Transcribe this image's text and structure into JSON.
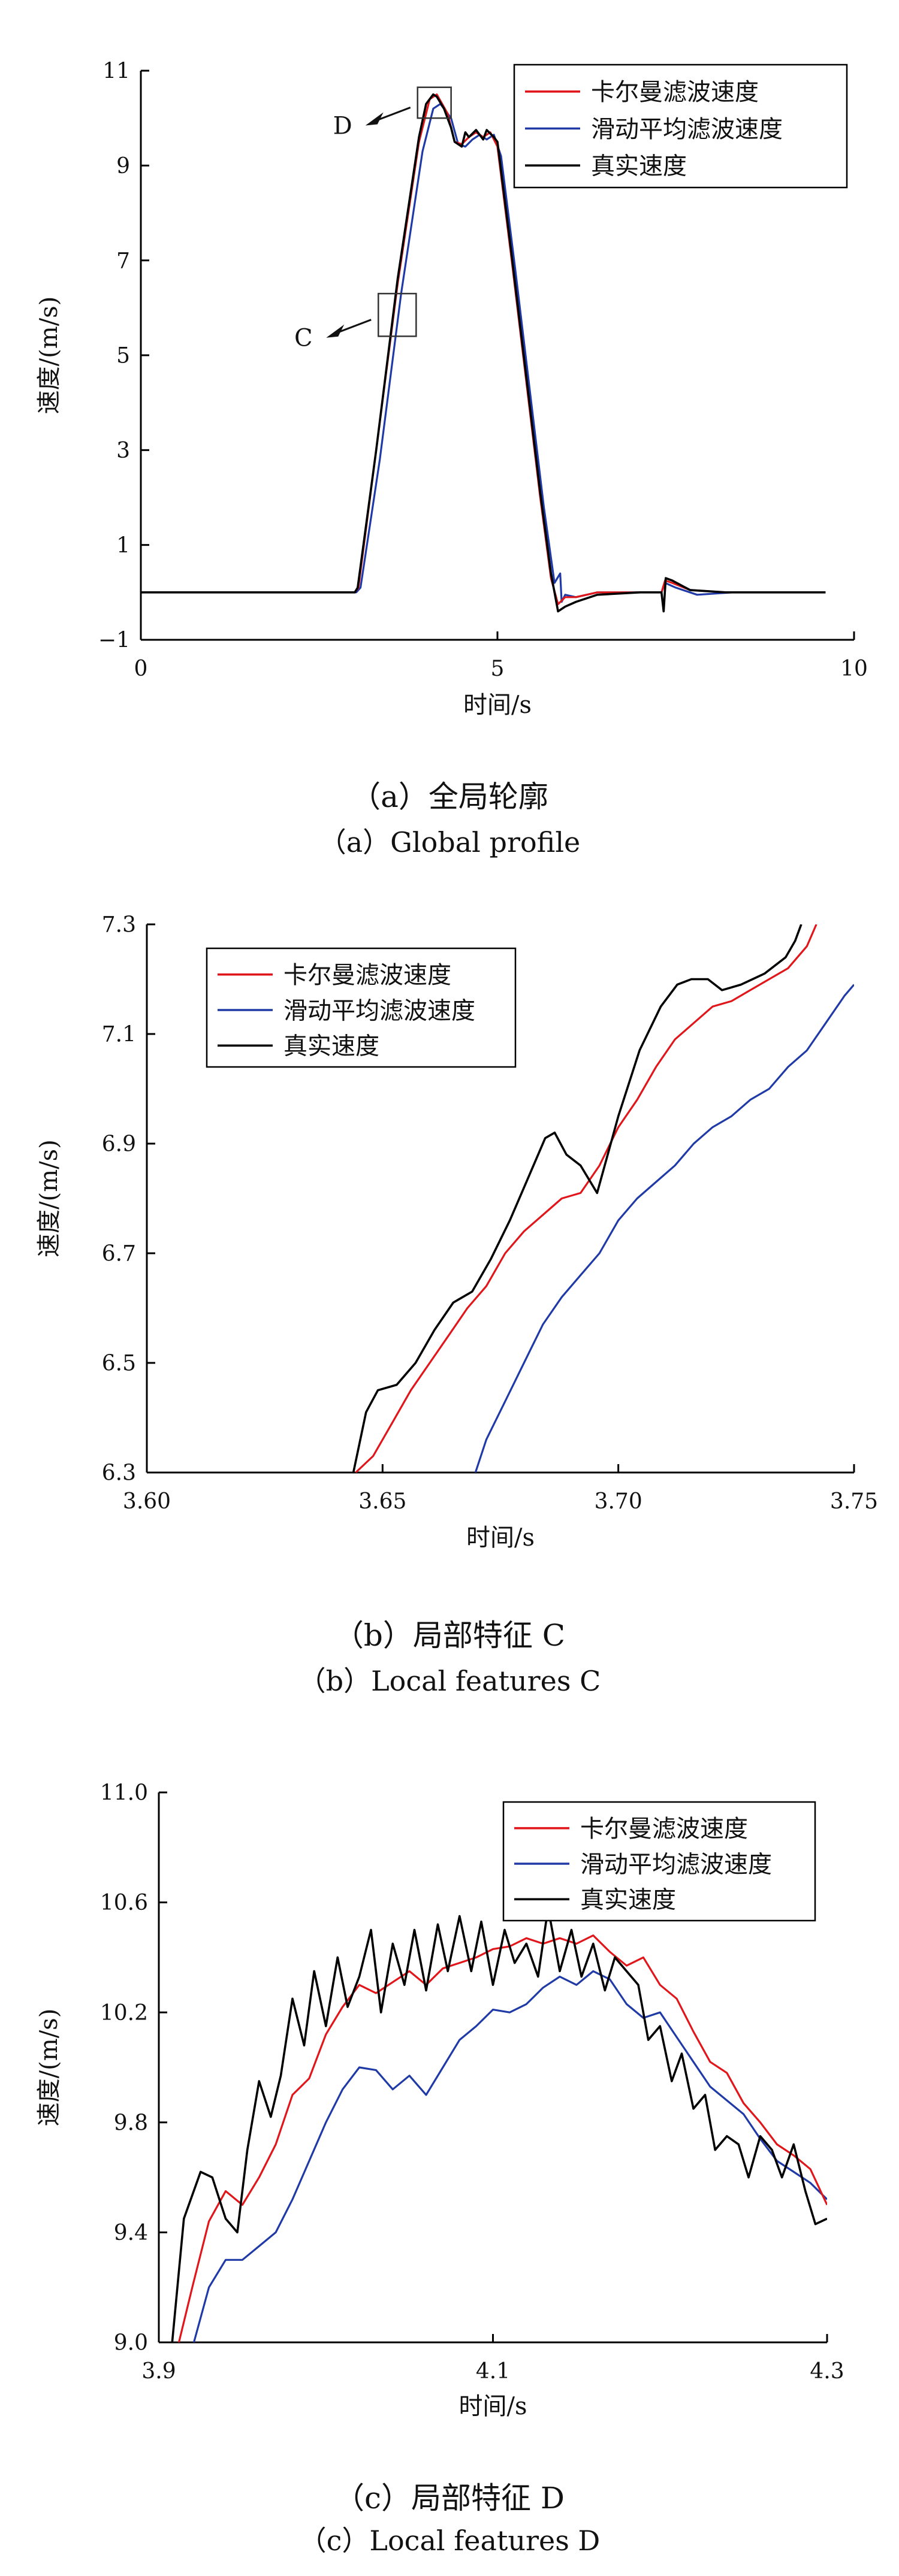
{
  "colors": {
    "kalman": "#e0161b",
    "moving_avg": "#1f3aa6",
    "true_speed": "#000000"
  },
  "panels": [
    {
      "caption_cn": "（a）全局轮廓",
      "caption_en": "（a）Global profile"
    },
    {
      "caption_cn": "（b）局部特征 C",
      "caption_en": "（b）Local features C"
    },
    {
      "caption_cn": "（c）局部特征 D",
      "caption_en": "（c）Local features D"
    }
  ],
  "chart_data": [
    {
      "type": "line",
      "xlabel": "时间/s",
      "ylabel": "速度/(m/s)",
      "xlim": [
        0,
        10
      ],
      "ylim": [
        -1,
        11
      ],
      "xticks": [
        0,
        5,
        10
      ],
      "xtick_labels": [
        "0",
        "5",
        "10"
      ],
      "yticks": [
        -1,
        1,
        3,
        5,
        7,
        9,
        11
      ],
      "ytick_labels": [
        "−1",
        "1",
        "3",
        "5",
        "7",
        "9",
        "11"
      ],
      "grid": false,
      "legend_position": "top-right",
      "annotations": [
        {
          "label": "D",
          "x_range": [
            3.88,
            4.35
          ],
          "y_range": [
            10.0,
            10.65
          ]
        },
        {
          "label": "C",
          "x_range": [
            3.33,
            3.86
          ],
          "y_range": [
            5.4,
            6.3
          ]
        }
      ],
      "series": [
        {
          "name": "卡尔曼滤波速度",
          "x": [
            0,
            3.0,
            3.05,
            3.3,
            3.6,
            3.9,
            4.05,
            4.15,
            4.3,
            4.4,
            4.5,
            4.6,
            4.7,
            4.8,
            4.9,
            5.0,
            5.2,
            5.4,
            5.6,
            5.75,
            5.85,
            5.95,
            6.1,
            6.4,
            7.0,
            7.3,
            7.35,
            7.45,
            7.7,
            8.2,
            9.6
          ],
          "y": [
            0,
            0,
            0.1,
            3.0,
            6.5,
            9.5,
            10.4,
            10.5,
            10.1,
            9.5,
            9.45,
            9.6,
            9.7,
            9.6,
            9.7,
            9.4,
            7.0,
            4.5,
            2.0,
            0.3,
            -0.25,
            -0.1,
            -0.1,
            0.0,
            0.0,
            0.0,
            0.25,
            0.2,
            0.05,
            0.0,
            0.0
          ]
        },
        {
          "name": "滑动平均滤波速度",
          "x": [
            0,
            3.02,
            3.08,
            3.35,
            3.65,
            3.95,
            4.1,
            4.2,
            4.35,
            4.45,
            4.55,
            4.65,
            4.75,
            4.85,
            4.95,
            5.05,
            5.25,
            5.45,
            5.65,
            5.8,
            5.88,
            5.9,
            5.95,
            6.1,
            6.4,
            7.0,
            7.3,
            7.35,
            7.5,
            7.8,
            8.3,
            9.6
          ],
          "y": [
            0,
            0,
            0.1,
            2.8,
            6.3,
            9.3,
            10.2,
            10.3,
            10.0,
            9.45,
            9.4,
            9.55,
            9.65,
            9.55,
            9.65,
            9.2,
            6.8,
            4.3,
            1.8,
            0.2,
            0.4,
            -0.2,
            -0.05,
            -0.1,
            0.0,
            0.0,
            0.0,
            0.2,
            0.1,
            -0.05,
            0.0,
            0.0
          ]
        },
        {
          "name": "真实速度",
          "x": [
            0,
            3.0,
            3.04,
            3.3,
            3.6,
            3.9,
            4.0,
            4.1,
            4.15,
            4.25,
            4.35,
            4.4,
            4.5,
            4.55,
            4.6,
            4.7,
            4.8,
            4.85,
            4.95,
            5.0,
            5.2,
            5.4,
            5.6,
            5.75,
            5.85,
            5.95,
            6.1,
            6.4,
            7.0,
            7.3,
            7.33,
            7.36,
            7.45,
            7.7,
            8.2,
            9.6
          ],
          "y": [
            0,
            0,
            0.1,
            3.0,
            6.6,
            9.6,
            10.3,
            10.5,
            10.45,
            10.2,
            9.8,
            9.5,
            9.4,
            9.7,
            9.6,
            9.75,
            9.55,
            9.75,
            9.6,
            9.5,
            7.1,
            4.6,
            2.1,
            0.4,
            -0.4,
            -0.3,
            -0.2,
            -0.05,
            0.0,
            0.0,
            -0.4,
            0.3,
            0.25,
            0.05,
            0.0,
            0.0
          ]
        }
      ]
    },
    {
      "type": "line",
      "xlabel": "时间/s",
      "ylabel": "速度/(m/s)",
      "xlim": [
        3.6,
        3.75
      ],
      "ylim": [
        6.3,
        7.3
      ],
      "xticks": [
        3.6,
        3.65,
        3.7,
        3.75
      ],
      "xtick_labels": [
        "3.60",
        "3.65",
        "3.70",
        "3.75"
      ],
      "yticks": [
        6.3,
        6.5,
        6.7,
        6.9,
        7.1,
        7.3
      ],
      "ytick_labels": [
        "6.3",
        "6.5",
        "6.7",
        "6.9",
        "7.1",
        "7.3"
      ],
      "grid": false,
      "legend_position": "top-left",
      "series": [
        {
          "name": "卡尔曼滤波速度",
          "x": [
            3.6443,
            3.648,
            3.652,
            3.656,
            3.66,
            3.664,
            3.668,
            3.672,
            3.676,
            3.68,
            3.684,
            3.688,
            3.692,
            3.696,
            3.7,
            3.704,
            3.708,
            3.712,
            3.716,
            3.72,
            3.724,
            3.728,
            3.732,
            3.736,
            3.74,
            3.742
          ],
          "y": [
            6.3,
            6.33,
            6.39,
            6.45,
            6.5,
            6.55,
            6.6,
            6.64,
            6.7,
            6.74,
            6.77,
            6.8,
            6.81,
            6.86,
            6.93,
            6.98,
            7.04,
            7.09,
            7.12,
            7.15,
            7.16,
            7.18,
            7.2,
            7.22,
            7.26,
            7.3
          ]
        },
        {
          "name": "滑动平均滤波速度",
          "x": [
            3.6697,
            3.672,
            3.676,
            3.68,
            3.684,
            3.688,
            3.692,
            3.696,
            3.7,
            3.704,
            3.708,
            3.712,
            3.716,
            3.72,
            3.724,
            3.728,
            3.732,
            3.736,
            3.74,
            3.744,
            3.748,
            3.75
          ],
          "y": [
            6.3,
            6.36,
            6.43,
            6.5,
            6.57,
            6.62,
            6.66,
            6.7,
            6.76,
            6.8,
            6.83,
            6.86,
            6.9,
            6.93,
            6.95,
            6.98,
            7.0,
            7.04,
            7.07,
            7.12,
            7.17,
            7.19
          ]
        },
        {
          "name": "真实速度",
          "x": [
            3.6438,
            3.6465,
            3.649,
            3.653,
            3.657,
            3.661,
            3.665,
            3.669,
            3.673,
            3.677,
            3.681,
            3.6845,
            3.6865,
            3.689,
            3.692,
            3.6955,
            3.7,
            3.7045,
            3.709,
            3.7125,
            3.7155,
            3.719,
            3.722,
            3.726,
            3.731,
            3.7355,
            3.7375,
            3.7388
          ],
          "y": [
            6.3,
            6.41,
            6.45,
            6.46,
            6.5,
            6.56,
            6.61,
            6.63,
            6.69,
            6.76,
            6.84,
            6.91,
            6.92,
            6.88,
            6.86,
            6.81,
            6.95,
            7.07,
            7.15,
            7.19,
            7.2,
            7.2,
            7.18,
            7.19,
            7.21,
            7.24,
            7.27,
            7.3
          ]
        }
      ]
    },
    {
      "type": "line",
      "xlabel": "时间/s",
      "ylabel": "速度/(m/s)",
      "xlim": [
        3.9,
        4.3
      ],
      "ylim": [
        9.0,
        11.0
      ],
      "xticks": [
        3.9,
        4.1,
        4.3
      ],
      "xtick_labels": [
        "3.9",
        "4.1",
        "4.3"
      ],
      "yticks": [
        9.0,
        9.4,
        9.8,
        10.2,
        10.6,
        11.0
      ],
      "ytick_labels": [
        "9.0",
        "9.4",
        "9.8",
        "10.2",
        "10.6",
        "11.0"
      ],
      "grid": false,
      "legend_position": "top-right",
      "series": [
        {
          "name": "卡尔曼滤波速度",
          "x": [
            3.912,
            3.92,
            3.93,
            3.94,
            3.95,
            3.96,
            3.97,
            3.98,
            3.99,
            4.0,
            4.01,
            4.02,
            4.03,
            4.04,
            4.05,
            4.06,
            4.07,
            4.08,
            4.09,
            4.1,
            4.11,
            4.12,
            4.13,
            4.14,
            4.15,
            4.16,
            4.17,
            4.18,
            4.19,
            4.2,
            4.21,
            4.22,
            4.23,
            4.24,
            4.25,
            4.26,
            4.27,
            4.28,
            4.29,
            4.3
          ],
          "y": [
            9.0,
            9.2,
            9.44,
            9.55,
            9.5,
            9.6,
            9.72,
            9.9,
            9.96,
            10.12,
            10.22,
            10.3,
            10.27,
            10.31,
            10.35,
            10.3,
            10.36,
            10.38,
            10.4,
            10.43,
            10.44,
            10.47,
            10.45,
            10.47,
            10.45,
            10.48,
            10.42,
            10.37,
            10.4,
            10.3,
            10.25,
            10.13,
            10.02,
            9.98,
            9.87,
            9.8,
            9.72,
            9.68,
            9.63,
            9.5
          ]
        },
        {
          "name": "滑动平均滤波速度",
          "x": [
            3.921,
            3.93,
            3.94,
            3.95,
            3.96,
            3.97,
            3.98,
            3.99,
            4.0,
            4.01,
            4.02,
            4.03,
            4.04,
            4.05,
            4.06,
            4.07,
            4.08,
            4.09,
            4.1,
            4.11,
            4.12,
            4.13,
            4.14,
            4.15,
            4.16,
            4.17,
            4.18,
            4.19,
            4.2,
            4.21,
            4.22,
            4.23,
            4.24,
            4.25,
            4.26,
            4.27,
            4.28,
            4.29,
            4.3
          ],
          "y": [
            9.0,
            9.2,
            9.3,
            9.3,
            9.35,
            9.4,
            9.52,
            9.66,
            9.8,
            9.92,
            10.0,
            9.99,
            9.92,
            9.97,
            9.9,
            10.0,
            10.1,
            10.15,
            10.21,
            10.2,
            10.23,
            10.29,
            10.33,
            10.3,
            10.35,
            10.32,
            10.23,
            10.18,
            10.2,
            10.11,
            10.02,
            9.93,
            9.88,
            9.83,
            9.74,
            9.66,
            9.62,
            9.58,
            9.52
          ]
        },
        {
          "name": "真实速度",
          "x": [
            3.908,
            3.915,
            3.925,
            3.932,
            3.94,
            3.947,
            3.953,
            3.96,
            3.967,
            3.973,
            3.98,
            3.987,
            3.993,
            4.0,
            4.007,
            4.013,
            4.02,
            4.027,
            4.033,
            4.04,
            4.047,
            4.053,
            4.06,
            4.067,
            4.073,
            4.08,
            4.087,
            4.093,
            4.1,
            4.107,
            4.113,
            4.12,
            4.127,
            4.133,
            4.14,
            4.147,
            4.153,
            4.16,
            4.167,
            4.173,
            4.18,
            4.187,
            4.193,
            4.2,
            4.207,
            4.213,
            4.22,
            4.227,
            4.233,
            4.24,
            4.247,
            4.253,
            4.26,
            4.267,
            4.273,
            4.28,
            4.287,
            4.293,
            4.3
          ],
          "y": [
            9.0,
            9.45,
            9.62,
            9.6,
            9.45,
            9.4,
            9.7,
            9.95,
            9.82,
            9.97,
            10.25,
            10.08,
            10.35,
            10.15,
            10.4,
            10.22,
            10.33,
            10.5,
            10.2,
            10.45,
            10.3,
            10.5,
            10.28,
            10.52,
            10.35,
            10.55,
            10.35,
            10.53,
            10.3,
            10.5,
            10.38,
            10.45,
            10.33,
            10.58,
            10.35,
            10.5,
            10.33,
            10.45,
            10.28,
            10.4,
            10.35,
            10.3,
            10.1,
            10.15,
            9.95,
            10.05,
            9.85,
            9.9,
            9.7,
            9.75,
            9.72,
            9.6,
            9.75,
            9.7,
            9.6,
            9.72,
            9.55,
            9.43,
            9.45
          ]
        }
      ]
    }
  ]
}
